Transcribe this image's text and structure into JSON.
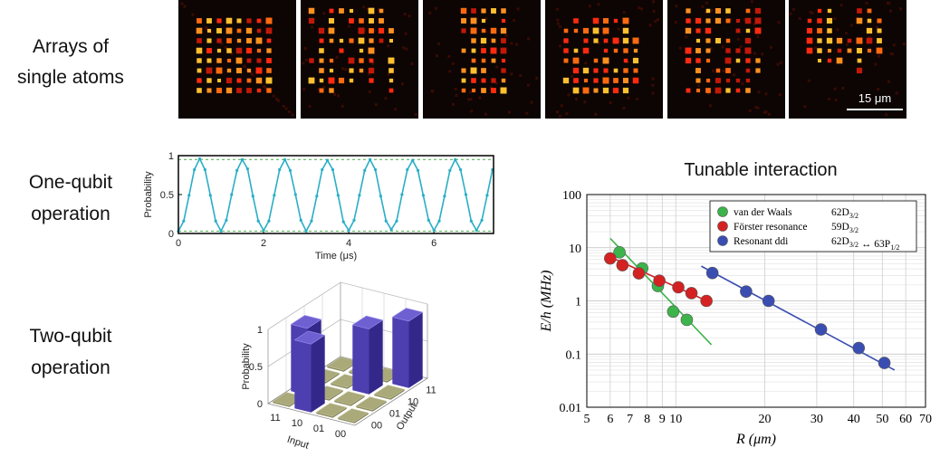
{
  "labels": {
    "arrays": [
      "Arrays of",
      "single atoms"
    ],
    "one_qubit": [
      "One-qubit",
      "operation"
    ],
    "two_qubit": [
      "Two-qubit",
      "operation"
    ]
  },
  "atom_arrays": {
    "scale_bar": "15 μm"
  },
  "chart_data": [
    {
      "type": "line",
      "xlabel": "Time (μs)",
      "ylabel": "Probability",
      "color": "#2aaec6",
      "x": [
        0,
        0.125,
        0.25,
        0.375,
        0.5,
        0.625,
        0.75,
        0.875,
        1,
        1.125,
        1.25,
        1.375,
        1.5,
        1.625,
        1.75,
        1.875,
        2,
        2.125,
        2.25,
        2.375,
        2.5,
        2.625,
        2.75,
        2.875,
        3,
        3.125,
        3.25,
        3.375,
        3.5,
        3.625,
        3.75,
        3.875,
        4,
        4.125,
        4.25,
        4.375,
        4.5,
        4.625,
        4.75,
        4.875,
        5,
        5.125,
        5.25,
        5.375,
        5.5,
        5.625,
        5.75,
        5.875,
        6,
        6.125,
        6.25,
        6.375,
        6.5,
        6.625,
        6.75,
        6.875,
        7,
        7.125,
        7.25,
        7.375
      ],
      "values": [
        0.03,
        0.16,
        0.49,
        0.82,
        0.96,
        0.82,
        0.49,
        0.16,
        0.03,
        0.17,
        0.5,
        0.81,
        0.95,
        0.83,
        0.48,
        0.16,
        0.04,
        0.16,
        0.49,
        0.82,
        0.95,
        0.81,
        0.5,
        0.17,
        0.03,
        0.16,
        0.48,
        0.82,
        0.94,
        0.82,
        0.49,
        0.15,
        0.04,
        0.17,
        0.49,
        0.81,
        0.95,
        0.82,
        0.48,
        0.16,
        0.05,
        0.16,
        0.5,
        0.82,
        0.94,
        0.81,
        0.49,
        0.17,
        0.04,
        0.16,
        0.48,
        0.81,
        0.95,
        0.82,
        0.5,
        0.16,
        0.04,
        0.17,
        0.49,
        0.82
      ],
      "hlines": {
        "values": [
          0.03,
          0.95
        ],
        "color": "#5cb85c"
      },
      "xlim": [
        0,
        7.4
      ],
      "xticks": [
        0,
        2,
        4,
        6
      ],
      "ylim": [
        0,
        1
      ],
      "yticks": [
        0,
        0.5,
        1
      ]
    },
    {
      "type": "bar3d",
      "zlabel": "Probability",
      "xlabel": "Input",
      "ylabel": "Output",
      "input": [
        "11",
        "10",
        "01",
        "00"
      ],
      "output": [
        "00",
        "01",
        "10",
        "11"
      ],
      "values": [
        [
          0.02,
          0.9,
          0.02,
          0.02
        ],
        [
          0.92,
          0.02,
          0.02,
          0.02
        ],
        [
          0.02,
          0.02,
          0.88,
          0.02
        ],
        [
          0.02,
          0.02,
          0.02,
          0.9
        ]
      ],
      "zlim": [
        0,
        1
      ],
      "zticks": [
        0,
        0.5,
        1
      ],
      "bar_color": "#6f60d2",
      "floor_color": "#aaa97a"
    },
    {
      "type": "scatter",
      "title": "Tunable interaction",
      "xlabel": "R (μm)",
      "ylabel": "E/h (MHz)",
      "xscale": "log",
      "yscale": "log",
      "grid": true,
      "legend": "upper right",
      "xlim": [
        5,
        70
      ],
      "xticks": [
        5,
        6,
        7,
        8,
        9,
        10,
        20,
        30,
        40,
        50,
        60,
        70
      ],
      "ylim": [
        0.01,
        100
      ],
      "yticks": [
        0.01,
        0.1,
        1,
        10,
        100
      ],
      "series": [
        {
          "name": "van der Waals",
          "state": [
            {
              "text": "62D",
              "sub": "3/2"
            }
          ],
          "color": "#3cb44b",
          "x": [
            6.45,
            7.7,
            8.7,
            9.8,
            10.9
          ],
          "values": [
            8.2,
            4.1,
            1.9,
            0.63,
            0.44
          ],
          "fit": {
            "x": [
              6,
              13.2
            ],
            "values": [
              15,
              0.15
            ]
          }
        },
        {
          "name": "Förster resonance",
          "state": [
            {
              "text": "59D",
              "sub": "3/2"
            }
          ],
          "color": "#d42222",
          "x": [
            6.0,
            6.6,
            7.5,
            8.8,
            10.2,
            11.3,
            12.7
          ],
          "values": [
            6.3,
            4.7,
            3.3,
            2.4,
            1.8,
            1.4,
            1.0
          ],
          "fit": {
            "x": [
              5.9,
              13
            ],
            "values": [
              7,
              0.95
            ]
          }
        },
        {
          "name": "Resonant ddi",
          "state": [
            {
              "text": "62D",
              "sub": "3/2"
            },
            {
              "text": " ↔ 63P",
              "sub": "1/2"
            }
          ],
          "color": "#3a4eb2",
          "x": [
            13.3,
            17.3,
            20.6,
            31,
            41.6,
            50.8
          ],
          "values": [
            3.35,
            1.5,
            1.0,
            0.29,
            0.13,
            0.068
          ],
          "fit": {
            "x": [
              12.2,
              55
            ],
            "values": [
              4.5,
              0.05
            ]
          }
        }
      ]
    }
  ]
}
